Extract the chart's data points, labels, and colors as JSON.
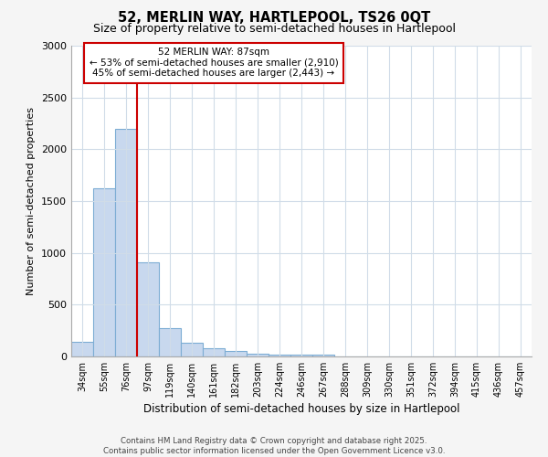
{
  "title1": "52, MERLIN WAY, HARTLEPOOL, TS26 0QT",
  "title2": "Size of property relative to semi-detached houses in Hartlepool",
  "xlabel": "Distribution of semi-detached houses by size in Hartlepool",
  "ylabel": "Number of semi-detached properties",
  "categories": [
    "34sqm",
    "55sqm",
    "76sqm",
    "97sqm",
    "119sqm",
    "140sqm",
    "161sqm",
    "182sqm",
    "203sqm",
    "224sqm",
    "246sqm",
    "267sqm",
    "288sqm",
    "309sqm",
    "330sqm",
    "351sqm",
    "372sqm",
    "394sqm",
    "415sqm",
    "436sqm",
    "457sqm"
  ],
  "values": [
    140,
    1620,
    2200,
    910,
    270,
    130,
    80,
    50,
    30,
    20,
    15,
    20,
    0,
    0,
    0,
    0,
    0,
    0,
    0,
    0,
    0
  ],
  "bar_color": "#c8d8ee",
  "bar_edge_color": "#7dadd4",
  "vline_color": "#cc0000",
  "vline_pos": 2.5,
  "annotation_text": "52 MERLIN WAY: 87sqm\n← 53% of semi-detached houses are smaller (2,910)\n45% of semi-detached houses are larger (2,443) →",
  "annotation_box_color": "#ffffff",
  "annotation_box_edge": "#cc0000",
  "ylim": [
    0,
    3000
  ],
  "yticks": [
    0,
    500,
    1000,
    1500,
    2000,
    2500,
    3000
  ],
  "footer": "Contains HM Land Registry data © Crown copyright and database right 2025.\nContains public sector information licensed under the Open Government Licence v3.0.",
  "bg_color": "#f5f5f5",
  "plot_bg": "#ffffff",
  "grid_color": "#d0dce8"
}
